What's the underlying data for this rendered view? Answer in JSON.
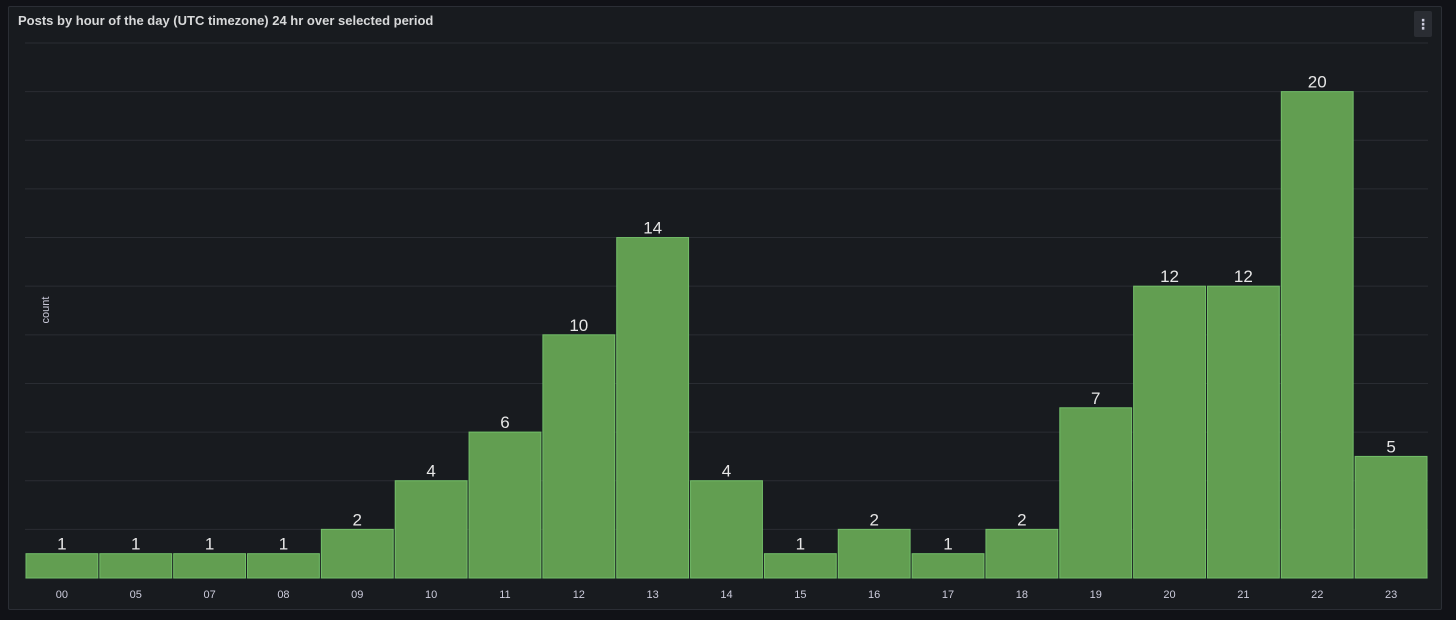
{
  "panel": {
    "title": "Posts by hour of the day (UTC timezone) 24 hr over selected period",
    "menu_icon": "kebab-menu-icon",
    "menu_glyph": "⋮"
  },
  "colors": {
    "bar": "#629e51",
    "bar_border": "#73bf69",
    "grid": "#2a2d33",
    "background": "#181b1f"
  },
  "chart_data": {
    "type": "bar",
    "title": "Posts by hour of the day (UTC timezone) 24 hr over selected period",
    "xlabel": "",
    "ylabel": "count",
    "categories": [
      "00",
      "05",
      "07",
      "08",
      "09",
      "10",
      "11",
      "12",
      "13",
      "14",
      "15",
      "16",
      "17",
      "18",
      "19",
      "20",
      "21",
      "22",
      "23"
    ],
    "values": [
      1,
      1,
      1,
      1,
      2,
      4,
      6,
      10,
      14,
      4,
      1,
      2,
      1,
      2,
      7,
      12,
      12,
      20,
      5
    ],
    "ylim": [
      0,
      22
    ],
    "grid": true,
    "show_values": true,
    "show_y_tick_labels": false
  }
}
